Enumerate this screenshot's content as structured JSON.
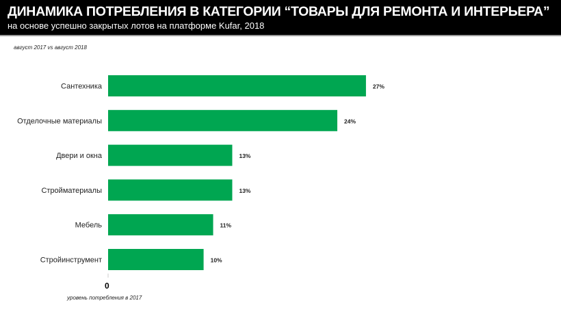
{
  "header": {
    "title": "ДИНАМИКА ПОТРЕБЛЕНИЯ В КАТЕГОРИИ “ТОВАРЫ ДЛЯ РЕМОНТА И ИНТЕРЬЕРА”",
    "subtitle": "на основе успешно закрытых лотов на платформе Kufar, 2018"
  },
  "chart_data": {
    "type": "bar",
    "orientation": "horizontal",
    "title": "ДИНАМИКА ПОТРЕБЛЕНИЯ В КАТЕГОРИИ “ТОВАРЫ ДЛЯ РЕМОНТА И ИНТЕРЬЕРА”",
    "subtitle": "август 2017 vs август 2018",
    "categories": [
      "Сантехника",
      "Отделочные материалы",
      "Двери и окна",
      "Стройматериалы",
      "Мебель",
      "Стройинструмент"
    ],
    "values": [
      27,
      24,
      13,
      13,
      11,
      10
    ],
    "data_labels": [
      "27%",
      "24%",
      "13%",
      "13%",
      "11%",
      "10%"
    ],
    "xlabel": "уровень потребления в 2017",
    "x_origin_label": "0",
    "xlim": [
      0,
      30
    ],
    "color": "#00a651",
    "grid": false
  }
}
